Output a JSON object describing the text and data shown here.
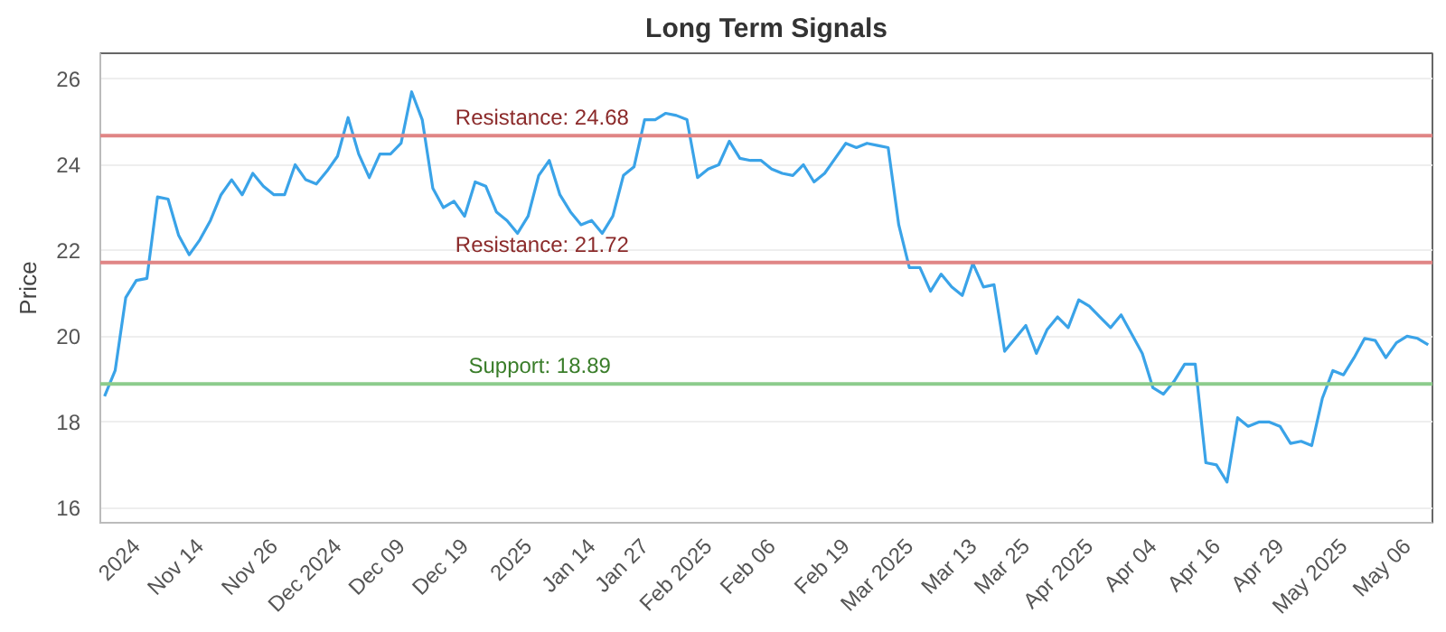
{
  "chart_data": {
    "type": "line",
    "title": "Long Term Signals",
    "ylabel": "Price",
    "categories": [
      null,
      null,
      null,
      "2024",
      null,
      null,
      null,
      null,
      null,
      "Nov 14",
      null,
      null,
      null,
      null,
      null,
      null,
      "Nov 26",
      null,
      null,
      null,
      null,
      null,
      "Dec 2024",
      null,
      null,
      null,
      null,
      null,
      "Dec 09",
      null,
      null,
      null,
      null,
      null,
      "Dec 19",
      null,
      null,
      null,
      null,
      null,
      "2025",
      null,
      null,
      null,
      null,
      null,
      "Jan 14",
      null,
      null,
      null,
      null,
      "Jan 27",
      null,
      null,
      null,
      null,
      null,
      "Feb 2025",
      null,
      null,
      null,
      null,
      null,
      "Feb 06",
      null,
      null,
      null,
      null,
      null,
      null,
      "Feb 19",
      null,
      null,
      null,
      null,
      null,
      "Mar 2025",
      null,
      null,
      null,
      null,
      null,
      "Mar 13",
      null,
      null,
      null,
      null,
      "Mar 25",
      null,
      null,
      null,
      null,
      null,
      "Apr 2025",
      null,
      null,
      null,
      null,
      null,
      "Apr 04",
      null,
      null,
      null,
      null,
      null,
      "Apr 16",
      null,
      null,
      null,
      null,
      null,
      "Apr 29",
      null,
      null,
      null,
      null,
      null,
      "May 2025",
      null,
      null,
      null,
      null,
      null,
      "May 06",
      null,
      null
    ],
    "series": [
      {
        "color": "#3aa3e8",
        "values": [
          18.6,
          19.2,
          20.9,
          21.3,
          21.35,
          23.25,
          23.2,
          22.35,
          21.9,
          22.25,
          22.7,
          23.3,
          23.65,
          23.3,
          23.8,
          23.5,
          23.3,
          23.3,
          24.0,
          23.65,
          23.55,
          23.85,
          24.2,
          25.1,
          24.25,
          23.7,
          24.25,
          24.25,
          24.5,
          25.7,
          25.05,
          23.45,
          23.0,
          23.15,
          22.8,
          23.6,
          23.5,
          22.9,
          22.7,
          22.4,
          22.8,
          23.75,
          24.1,
          23.3,
          22.9,
          22.6,
          22.7,
          22.4,
          22.8,
          23.75,
          23.95,
          25.05,
          25.05,
          25.2,
          25.15,
          25.05,
          23.7,
          23.9,
          24.0,
          24.55,
          24.15,
          24.1,
          24.1,
          23.9,
          23.8,
          23.75,
          24.0,
          23.6,
          23.8,
          24.15,
          24.5,
          24.4,
          24.5,
          24.45,
          24.4,
          22.6,
          21.6,
          21.6,
          21.05,
          21.45,
          21.15,
          20.95,
          21.7,
          21.15,
          21.2,
          19.65,
          19.95,
          20.25,
          19.6,
          20.15,
          20.45,
          20.2,
          20.85,
          20.7,
          20.45,
          20.2,
          20.5,
          20.05,
          19.6,
          18.8,
          18.65,
          18.95,
          19.35,
          19.35,
          17.05,
          17.0,
          16.6,
          18.1,
          17.9,
          18.0,
          18.0,
          17.9,
          17.5,
          17.55,
          17.45,
          18.55,
          19.2,
          19.1,
          19.5,
          19.95,
          19.9,
          19.5,
          19.85,
          20.0,
          19.95,
          19.8
        ]
      }
    ],
    "ylim": [
      15.65,
      26.6
    ],
    "yticks": [
      16,
      18,
      20,
      22,
      24,
      26
    ],
    "grid": "y",
    "ref_lines": [
      {
        "axis": "y",
        "value": 24.68,
        "label": "Resistance: 24.68",
        "color": "#e08585"
      },
      {
        "axis": "y",
        "value": 21.72,
        "label": "Resistance: 21.72",
        "color": "#e08585"
      },
      {
        "axis": "y",
        "value": 18.89,
        "label": "Support: 18.89",
        "color": "#8ccc8c"
      }
    ]
  }
}
